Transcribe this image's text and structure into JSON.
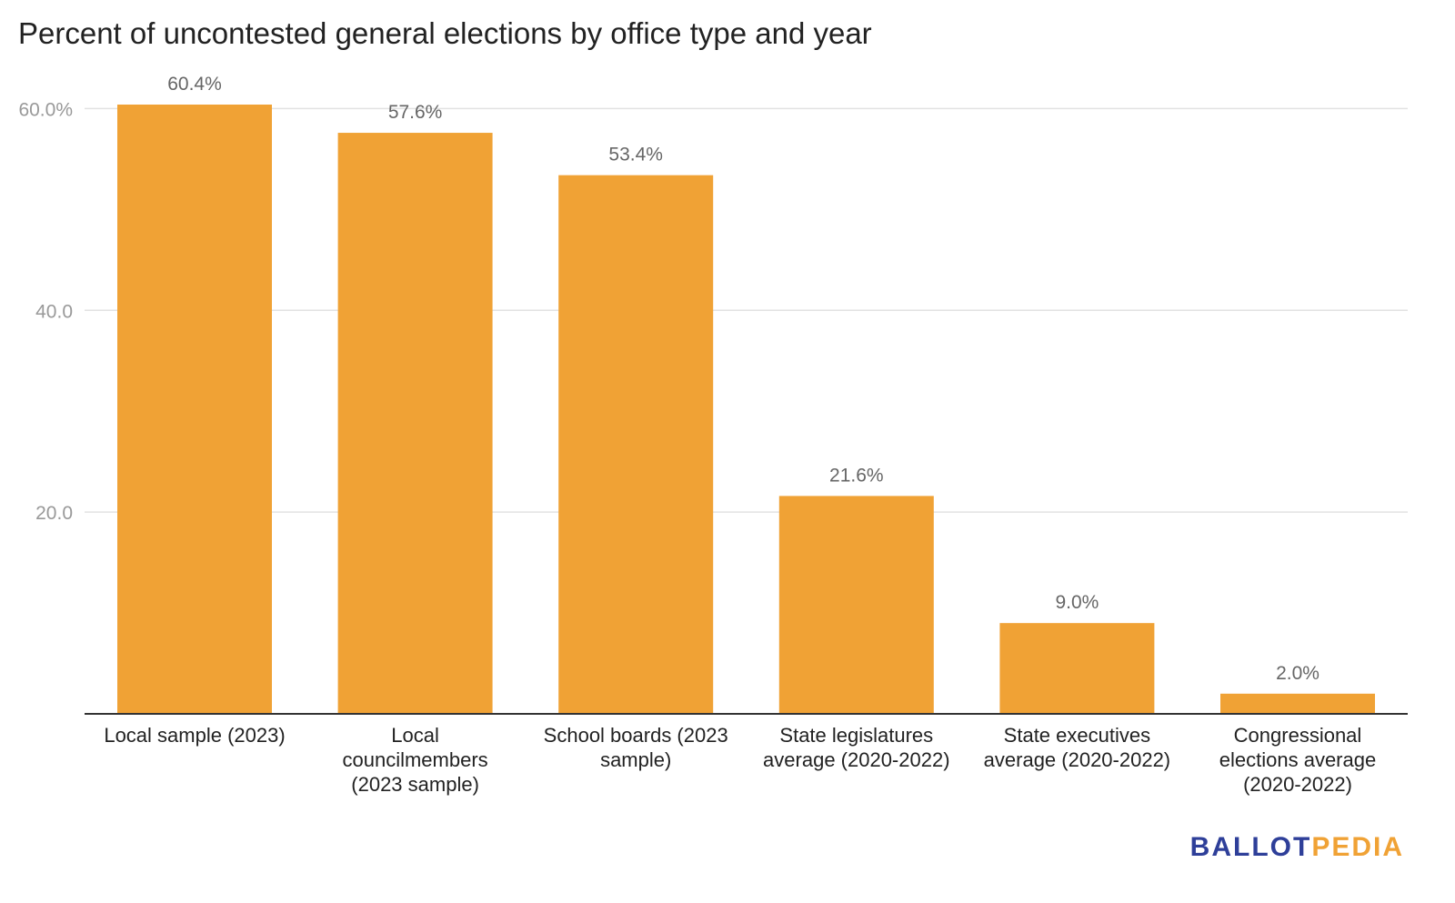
{
  "title": "Percent of uncontested general elections by office type and year",
  "brand": {
    "part1": "BALLOT",
    "part2": "PEDIA",
    "color1": "#2e3f99",
    "color2": "#f0a235"
  },
  "chart_data": {
    "type": "bar",
    "title": "Percent of uncontested general elections by office type and year",
    "categories": [
      [
        "Local sample (2023)"
      ],
      [
        "Local",
        "councilmembers",
        "(2023 sample)"
      ],
      [
        "School boards (2023",
        "sample)"
      ],
      [
        "State legislatures",
        "average (2020-2022)"
      ],
      [
        "State executives",
        "average (2020-2022)"
      ],
      [
        "Congressional",
        "elections average",
        "(2020-2022)"
      ]
    ],
    "values": [
      60.4,
      57.6,
      53.4,
      21.6,
      9.0,
      2.0
    ],
    "data_labels": [
      "60.4%",
      "57.6%",
      "53.4%",
      "21.6%",
      "9.0%",
      "2.0%"
    ],
    "yticks": [
      {
        "value": 20,
        "label": "20.0"
      },
      {
        "value": 40,
        "label": "40.0"
      },
      {
        "value": 60,
        "label": "60.0%"
      }
    ],
    "ylim": [
      0,
      60.4
    ],
    "bar_color": "#f0a235",
    "grid": true,
    "legend": "none"
  }
}
